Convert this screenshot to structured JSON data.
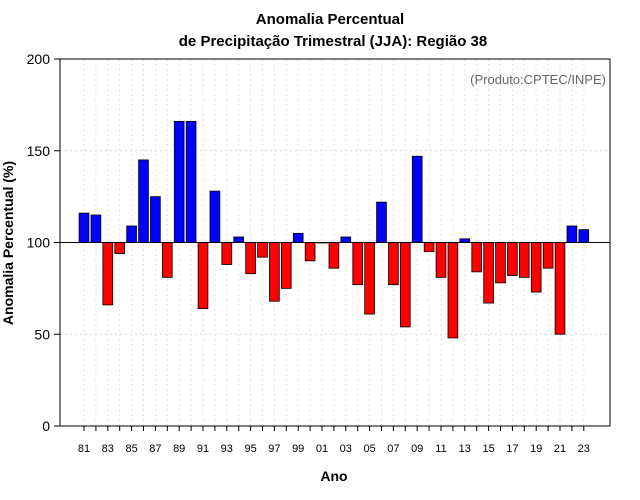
{
  "chart_data": {
    "type": "bar",
    "title_line1": "Anomalia Percentual",
    "title_line2": "de Precipitação Trimestral (JJA): Região 38",
    "xlabel": "Ano",
    "ylabel": "Anomalia Percentual (%)",
    "credit": "(Produto:CPTEC/INPE)",
    "ylim": [
      0,
      200
    ],
    "yticks": [
      0,
      50,
      100,
      150,
      200
    ],
    "baseline": 100,
    "colors": {
      "above": "#0000ff",
      "below": "#ff0000",
      "outline": "#000000"
    },
    "categories": [
      "81",
      "82",
      "83",
      "84",
      "85",
      "86",
      "87",
      "88",
      "89",
      "90",
      "91",
      "92",
      "93",
      "94",
      "95",
      "96",
      "97",
      "98",
      "99",
      "00",
      "01",
      "02",
      "03",
      "04",
      "05",
      "06",
      "07",
      "08",
      "09",
      "10",
      "11",
      "12",
      "13",
      "14",
      "15",
      "16",
      "17",
      "18",
      "19",
      "20",
      "21",
      "22",
      "23"
    ],
    "xtick_labels": [
      "81",
      "83",
      "85",
      "87",
      "89",
      "91",
      "93",
      "95",
      "97",
      "99",
      "01",
      "03",
      "05",
      "07",
      "09",
      "11",
      "13",
      "15",
      "17",
      "19",
      "21",
      "23"
    ],
    "values": [
      116,
      115,
      66,
      94,
      109,
      145,
      125,
      81,
      166,
      166,
      64,
      128,
      88,
      103,
      83,
      92,
      68,
      75,
      105,
      90,
      100,
      86,
      103,
      77,
      61,
      122,
      77,
      54,
      147,
      95,
      81,
      48,
      102,
      84,
      67,
      78,
      82,
      81,
      73,
      86,
      50,
      109,
      107
    ]
  }
}
